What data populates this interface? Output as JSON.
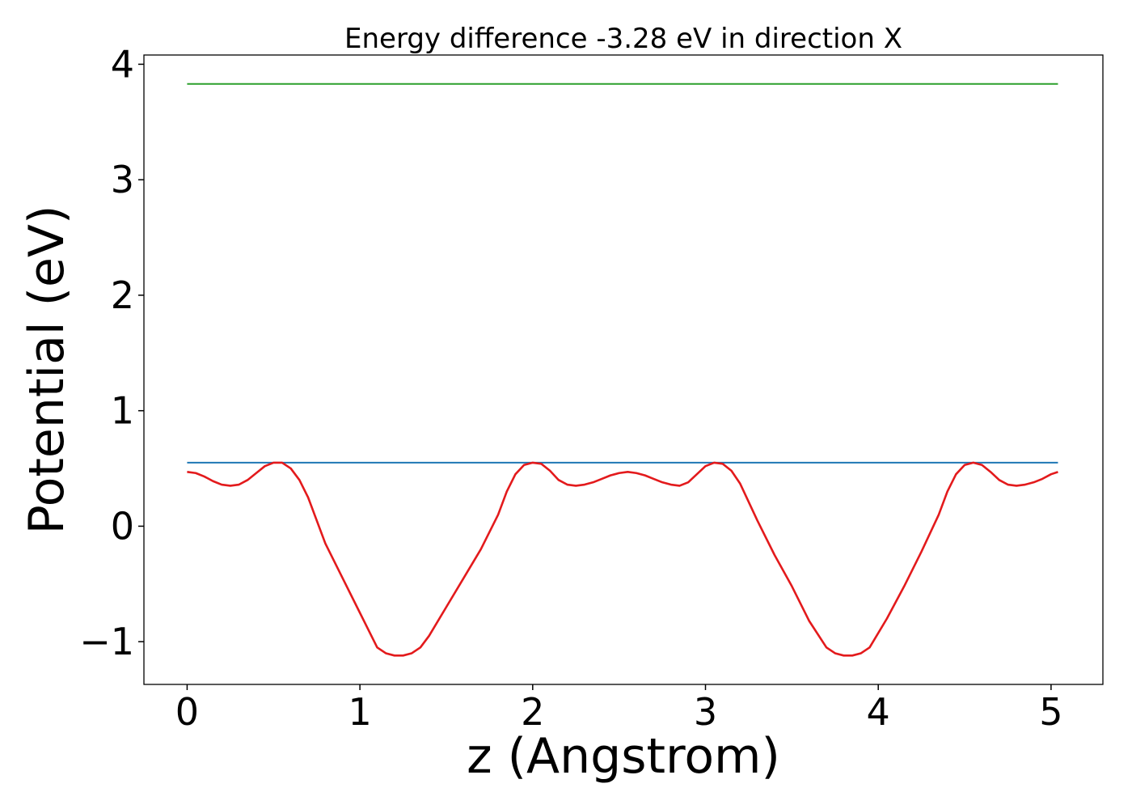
{
  "chart_data": {
    "type": "line",
    "title": "Energy difference -3.28 eV in direction X",
    "xlabel": "z (Angstrom)",
    "ylabel": "Potential (eV)",
    "xlim": [
      -0.25,
      5.3
    ],
    "ylim": [
      -1.37,
      4.08
    ],
    "x_ticks": [
      0,
      1,
      2,
      3,
      4,
      5
    ],
    "x_tick_labels": [
      "0",
      "1",
      "2",
      "3",
      "4",
      "5"
    ],
    "y_ticks": [
      -1,
      0,
      1,
      2,
      3,
      4
    ],
    "y_tick_labels": [
      "−1",
      "0",
      "1",
      "2",
      "3",
      "4"
    ],
    "grid": false,
    "legend": "none",
    "series": [
      {
        "color": "#2ca02c",
        "x": [
          0,
          5.04
        ],
        "y": [
          3.83,
          3.83
        ]
      },
      {
        "color": "#1f77b4",
        "x": [
          0,
          5.04
        ],
        "y": [
          0.55,
          0.55
        ]
      },
      {
        "color": "#e31a1c",
        "x": [
          0,
          0.05,
          0.1,
          0.15,
          0.2,
          0.25,
          0.3,
          0.35,
          0.4,
          0.45,
          0.5,
          0.55,
          0.6,
          0.65,
          0.7,
          0.8,
          0.9,
          1.0,
          1.1,
          1.15,
          1.2,
          1.25,
          1.3,
          1.35,
          1.4,
          1.5,
          1.6,
          1.7,
          1.8,
          1.85,
          1.9,
          1.95,
          2.0,
          2.05,
          2.1,
          2.15,
          2.2,
          2.25,
          2.3,
          2.35,
          2.4,
          2.45,
          2.5,
          2.55,
          2.6,
          2.65,
          2.7,
          2.75,
          2.8,
          2.85,
          2.9,
          2.95,
          3.0,
          3.05,
          3.1,
          3.15,
          3.2,
          3.3,
          3.4,
          3.5,
          3.6,
          3.7,
          3.75,
          3.8,
          3.85,
          3.9,
          3.95,
          4.05,
          4.15,
          4.25,
          4.35,
          4.4,
          4.45,
          4.5,
          4.55,
          4.6,
          4.65,
          4.7,
          4.75,
          4.8,
          4.85,
          4.9,
          4.95,
          5.0,
          5.04
        ],
        "y": [
          0.47,
          0.46,
          0.43,
          0.39,
          0.36,
          0.35,
          0.36,
          0.4,
          0.46,
          0.52,
          0.55,
          0.55,
          0.5,
          0.4,
          0.25,
          -0.15,
          -0.45,
          -0.75,
          -1.05,
          -1.1,
          -1.12,
          -1.12,
          -1.1,
          -1.05,
          -0.95,
          -0.7,
          -0.45,
          -0.2,
          0.1,
          0.3,
          0.45,
          0.53,
          0.55,
          0.54,
          0.48,
          0.4,
          0.36,
          0.35,
          0.36,
          0.38,
          0.41,
          0.44,
          0.46,
          0.47,
          0.46,
          0.44,
          0.41,
          0.38,
          0.36,
          0.35,
          0.38,
          0.45,
          0.52,
          0.55,
          0.54,
          0.48,
          0.37,
          0.05,
          -0.25,
          -0.52,
          -0.82,
          -1.05,
          -1.1,
          -1.12,
          -1.12,
          -1.1,
          -1.05,
          -0.8,
          -0.52,
          -0.22,
          0.1,
          0.3,
          0.45,
          0.53,
          0.55,
          0.53,
          0.47,
          0.4,
          0.36,
          0.35,
          0.36,
          0.38,
          0.41,
          0.45,
          0.47
        ]
      }
    ]
  }
}
